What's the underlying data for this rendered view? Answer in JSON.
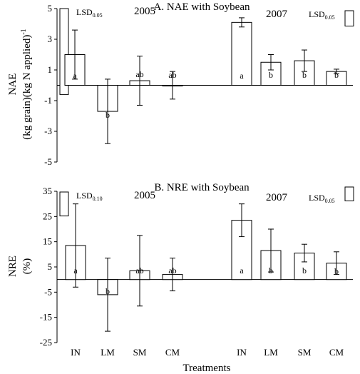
{
  "chart_data": [
    {
      "type": "bar",
      "title": "A. NAE with Soybean",
      "ylabel_line1": "NAE",
      "ylabel_line2": "(kg grain)(kg N applied)",
      "ylabel_sup": "-1",
      "ylim": [
        -5,
        5
      ],
      "yticks": [
        "5",
        "3",
        "1",
        "-1",
        "-3",
        "-5"
      ],
      "yticks_values": [
        5,
        3,
        1,
        -1,
        -3,
        -5
      ],
      "grid": false,
      "categories": [
        "IN",
        "LM",
        "SM",
        "CM",
        "IN",
        "LM",
        "SM",
        "CM"
      ],
      "groups": [
        {
          "year": "2005",
          "lsd_label": "LSD",
          "lsd_sub": "0.05",
          "lsd_bar": 5.6,
          "values": [
            2.0,
            -1.7,
            0.3,
            0.0
          ],
          "errors": [
            1.6,
            2.1,
            1.6,
            0.9
          ],
          "letters": [
            "a",
            "b",
            "ab",
            "ab"
          ]
        },
        {
          "year": "2007",
          "lsd_label": "LSD",
          "lsd_sub": "0.05",
          "lsd_bar": 1.0,
          "values": [
            4.1,
            1.5,
            1.6,
            0.9
          ],
          "errors": [
            0.3,
            0.5,
            0.7,
            0.15
          ],
          "letters": [
            "a",
            "b",
            "b",
            "b"
          ]
        }
      ]
    },
    {
      "type": "bar",
      "title": "B. NRE with Soybean",
      "ylabel_line1": "NRE",
      "ylabel_line2": "(%)",
      "ylim": [
        -25,
        35
      ],
      "yticks": [
        "35",
        "25",
        "15",
        "5",
        "-5",
        "-15",
        "-25"
      ],
      "yticks_values": [
        35,
        25,
        15,
        5,
        -5,
        -15,
        -25
      ],
      "grid": false,
      "categories": [
        "IN",
        "LM",
        "SM",
        "CM",
        "IN",
        "LM",
        "SM",
        "CM"
      ],
      "xlabel": "Treatments",
      "groups": [
        {
          "year": "2005",
          "lsd_label": "LSD",
          "lsd_sub": "0.10",
          "lsd_bar": 9.5,
          "values": [
            13.5,
            -6.0,
            3.5,
            2.0
          ],
          "errors": [
            16.5,
            14.5,
            14.0,
            6.5
          ],
          "letters": [
            "a",
            "b",
            "ab",
            "ab"
          ]
        },
        {
          "year": "2007",
          "lsd_label": "LSD",
          "lsd_sub": "0.05",
          "lsd_bar": 5.5,
          "values": [
            23.5,
            11.5,
            10.5,
            6.5
          ],
          "errors": [
            6.5,
            8.5,
            3.5,
            4.5
          ],
          "letters": [
            "a",
            "b",
            "b",
            "b"
          ]
        }
      ]
    }
  ]
}
